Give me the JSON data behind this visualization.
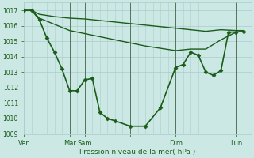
{
  "background_color": "#cce8e4",
  "grid_color": "#aacccc",
  "line_color": "#1a5c1a",
  "marker_color": "#1a5c1a",
  "title": "Pression niveau de la mer( hPa )",
  "ylim": [
    1009,
    1017.5
  ],
  "yticks": [
    1009,
    1010,
    1011,
    1012,
    1013,
    1014,
    1015,
    1016,
    1017
  ],
  "series": [
    {
      "x": [
        0,
        6,
        12,
        24,
        36,
        48,
        60,
        72,
        84,
        96,
        108,
        120,
        132,
        144,
        156,
        168,
        174
      ],
      "y": [
        1017,
        1017,
        1016.75,
        1016.6,
        1016.5,
        1016.45,
        1016.35,
        1016.25,
        1016.15,
        1016.05,
        1015.95,
        1015.85,
        1015.75,
        1015.65,
        1015.75,
        1015.7,
        1015.7
      ],
      "lw": 1.0,
      "has_markers": false
    },
    {
      "x": [
        0,
        6,
        12,
        24,
        36,
        48,
        60,
        72,
        84,
        96,
        108,
        120,
        132,
        144,
        156,
        168,
        174
      ],
      "y": [
        1017,
        1017,
        1016.5,
        1016.1,
        1015.7,
        1015.5,
        1015.3,
        1015.1,
        1014.9,
        1014.7,
        1014.55,
        1014.4,
        1014.5,
        1014.5,
        1015.1,
        1015.6,
        1015.65
      ],
      "lw": 1.0,
      "has_markers": false
    },
    {
      "x": [
        0,
        6,
        12,
        18,
        24,
        30,
        36,
        42,
        48,
        54,
        60,
        66,
        72,
        84,
        96,
        108,
        120,
        126,
        132,
        138,
        144,
        150,
        156,
        162,
        168,
        174
      ],
      "y": [
        1017,
        1017,
        1016.4,
        1015.2,
        1014.3,
        1013.2,
        1011.8,
        1011.8,
        1012.5,
        1012.6,
        1010.4,
        1010.0,
        1009.85,
        1009.5,
        1009.5,
        1010.7,
        1013.3,
        1013.5,
        1014.3,
        1014.1,
        1013.0,
        1012.8,
        1013.1,
        1015.6,
        1015.6,
        1015.65
      ],
      "lw": 1.2,
      "has_markers": true
    }
  ],
  "xmax": 180,
  "day_ticks": [
    0,
    36,
    48,
    84,
    120,
    168
  ],
  "day_labels": [
    "Ven",
    "Mar",
    "Sam",
    "",
    "Dim",
    "Lun"
  ],
  "xtick_fontsize": 6.0,
  "ytick_fontsize": 5.5,
  "xlabel_fontsize": 6.5
}
